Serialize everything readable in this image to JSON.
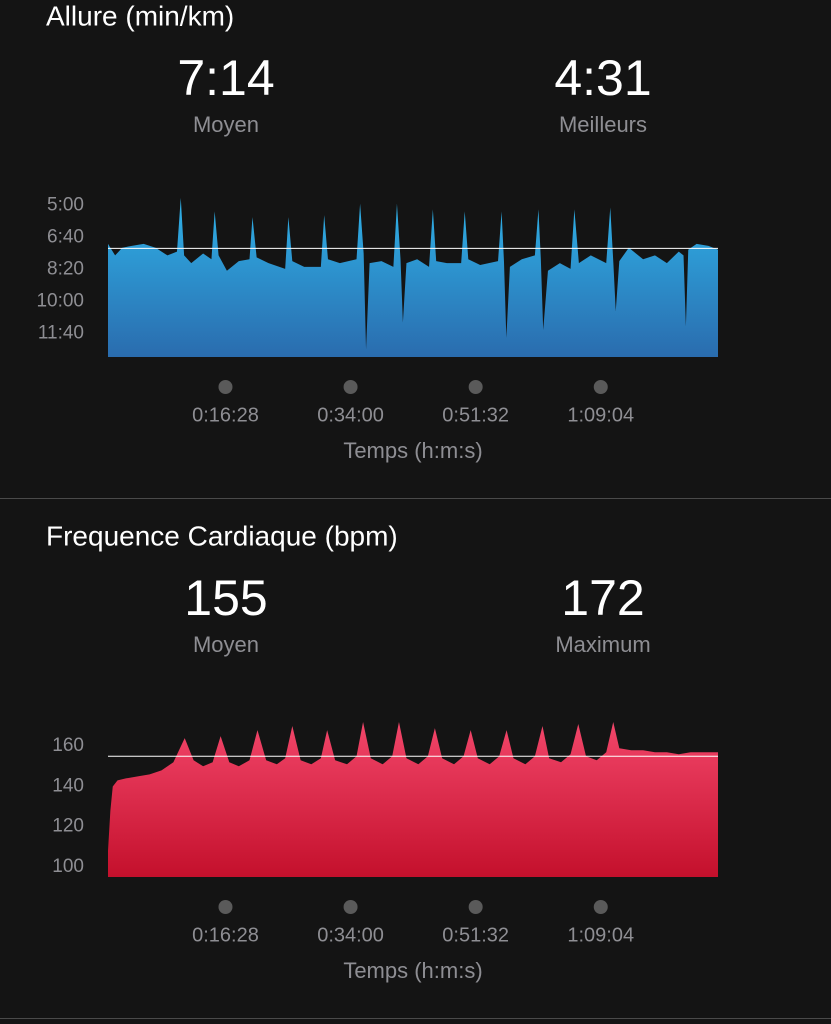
{
  "chart_data": [
    {
      "type": "area",
      "title": "Allure (min/km)",
      "stats": [
        {
          "value": "7:14",
          "label": "Moyen"
        },
        {
          "value": "4:31",
          "label": "Meilleurs"
        }
      ],
      "x_label": "Temps (h:m:s)",
      "x": [
        0,
        60,
        120,
        200,
        300,
        400,
        500,
        580,
        612,
        640,
        700,
        800,
        870,
        897,
        930,
        1000,
        1100,
        1190,
        1215,
        1250,
        1350,
        1490,
        1517,
        1550,
        1650,
        1790,
        1818,
        1850,
        1950,
        2090,
        2120,
        2150,
        2170,
        2200,
        2300,
        2400,
        2430,
        2460,
        2480,
        2510,
        2600,
        2700,
        2732,
        2760,
        2850,
        2970,
        3000,
        3030,
        3130,
        3280,
        3310,
        3330,
        3350,
        3380,
        3480,
        3590,
        3620,
        3640,
        3660,
        3700,
        3800,
        3890,
        3922,
        3960,
        4060,
        4190,
        4224,
        4250,
        4270,
        4300,
        4380,
        4500,
        4600,
        4700,
        4800,
        4840,
        4860,
        4880,
        4950,
        5050,
        5130
      ],
      "values": [
        7.0,
        7.6,
        7.2,
        7.1,
        7.0,
        7.2,
        7.6,
        7.4,
        4.6,
        7.6,
        8.0,
        7.5,
        7.8,
        5.3,
        7.6,
        8.4,
        7.9,
        7.8,
        5.6,
        7.7,
        8.0,
        8.3,
        5.6,
        7.9,
        8.2,
        8.2,
        5.5,
        7.8,
        8.0,
        7.8,
        4.9,
        7.5,
        12.5,
        8.0,
        7.9,
        8.2,
        4.9,
        7.8,
        11.1,
        8.0,
        7.8,
        8.2,
        5.2,
        7.9,
        8.0,
        8.0,
        5.3,
        7.8,
        8.1,
        7.9,
        5.3,
        7.9,
        11.9,
        8.2,
        7.8,
        7.6,
        5.2,
        7.8,
        11.5,
        8.4,
        8.0,
        8.3,
        5.2,
        8.0,
        7.6,
        8.0,
        5.1,
        8.0,
        10.5,
        7.9,
        7.2,
        7.8,
        7.6,
        8.0,
        7.4,
        7.6,
        11.3,
        7.3,
        7.0,
        7.1,
        7.3
      ],
      "average": 7.2333,
      "colors": [
        "#2fb2e8",
        "#2a6cae"
      ],
      "xlim": [
        0,
        5130
      ],
      "xticks": [
        {
          "value": 988,
          "label": "0:16:28"
        },
        {
          "value": 2040,
          "label": "0:34:00"
        },
        {
          "value": 3092,
          "label": "0:51:32"
        },
        {
          "value": 4144,
          "label": "1:09:04"
        }
      ],
      "ylim": [
        4.5,
        12.9
      ],
      "y_inverted": true,
      "yticks": [
        {
          "value": 5,
          "label": "5:00"
        },
        {
          "value": 6.6667,
          "label": "6:40"
        },
        {
          "value": 8.3333,
          "label": "8:20"
        },
        {
          "value": 10,
          "label": "10:00"
        },
        {
          "value": 11.6667,
          "label": "11:40"
        }
      ]
    },
    {
      "type": "area",
      "title": "Frequence Cardiaque (bpm)",
      "stats": [
        {
          "value": "155",
          "label": "Moyen"
        },
        {
          "value": "172",
          "label": "Maximum"
        }
      ],
      "x_label": "Temps (h:m:s)",
      "x": [
        0,
        20,
        40,
        80,
        150,
        250,
        350,
        450,
        550,
        645,
        720,
        800,
        880,
        947,
        1020,
        1100,
        1190,
        1257,
        1330,
        1420,
        1490,
        1550,
        1620,
        1710,
        1790,
        1843,
        1910,
        2010,
        2090,
        2145,
        2210,
        2310,
        2390,
        2447,
        2510,
        2610,
        2690,
        2749,
        2810,
        2910,
        2990,
        3050,
        3110,
        3210,
        3290,
        3352,
        3410,
        3510,
        3590,
        3654,
        3710,
        3810,
        3890,
        3955,
        4020,
        4110,
        4190,
        4249,
        4300,
        4400,
        4500,
        4600,
        4700,
        4800,
        4900,
        5000,
        5130
      ],
      "values": [
        108,
        128,
        140,
        143,
        144,
        145,
        146,
        148,
        152,
        164,
        153,
        150,
        152,
        165,
        152,
        150,
        153,
        168,
        153,
        151,
        154,
        170,
        153,
        151,
        154,
        168,
        153,
        151,
        155,
        172,
        154,
        151,
        155,
        172,
        154,
        151,
        155,
        169,
        154,
        151,
        155,
        168,
        154,
        151,
        155,
        168,
        154,
        151,
        155,
        170,
        154,
        152,
        156,
        171,
        155,
        153,
        157,
        172,
        159,
        158,
        158,
        157,
        157,
        156,
        157,
        157,
        157
      ],
      "average": 155,
      "colors": [
        "#f2466a",
        "#c4102c"
      ],
      "xlim": [
        0,
        5130
      ],
      "xticks": [
        {
          "value": 988,
          "label": "0:16:28"
        },
        {
          "value": 2040,
          "label": "0:34:00"
        },
        {
          "value": 3092,
          "label": "0:51:32"
        },
        {
          "value": 4144,
          "label": "1:09:04"
        }
      ],
      "ylim": [
        95,
        175
      ],
      "yticks": [
        160,
        140,
        120,
        100
      ]
    }
  ]
}
